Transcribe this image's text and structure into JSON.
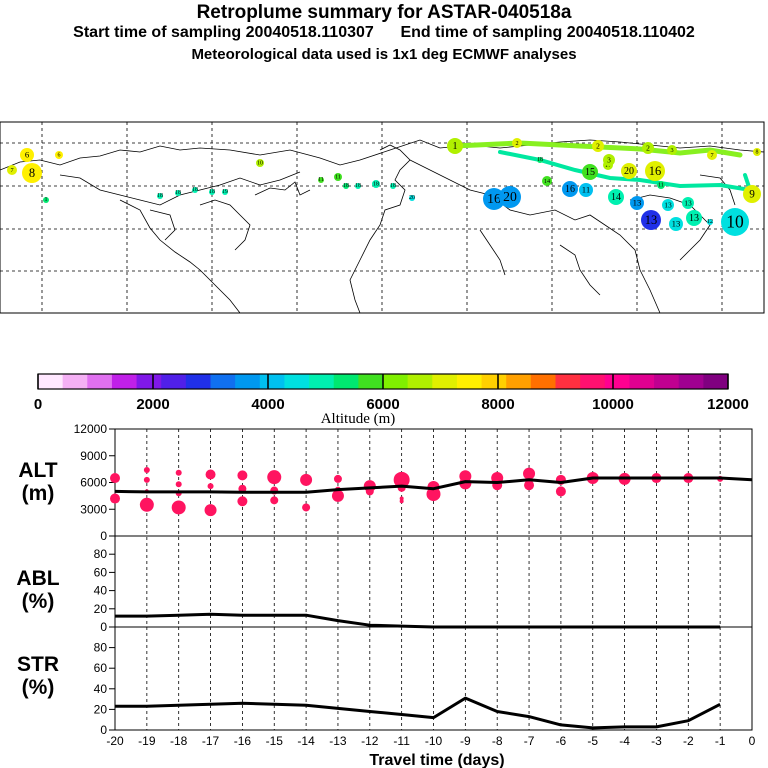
{
  "header": {
    "title": "Retroplume summary for ASTAR-040518a",
    "start_label": "Start time of sampling 20040518.110307",
    "end_label": "End time of sampling 20040518.110402",
    "met_label": "Meteorological data used is 1x1 deg ECMWF analyses"
  },
  "map": {
    "labels": [
      "1",
      "2",
      "3",
      "4",
      "5",
      "6",
      "7",
      "8",
      "9",
      "10",
      "11",
      "12",
      "13",
      "14",
      "15",
      "16",
      "17",
      "18",
      "19",
      "20"
    ],
    "path_color": "#00e8a0",
    "path_color2": "#88f020"
  },
  "colorbar": {
    "ticks": [
      "0",
      "2000",
      "4000",
      "6000",
      "8000",
      "10000",
      "12000"
    ],
    "title": "Altitude (m)",
    "colors": [
      "#ffe8ff",
      "#f4b0f4",
      "#e070f0",
      "#c020e8",
      "#8018e8",
      "#5020e8",
      "#2030e8",
      "#1070f0",
      "#0098f0",
      "#00c0f0",
      "#00e0e0",
      "#00f0b0",
      "#00e870",
      "#40e020",
      "#80f000",
      "#b0f000",
      "#e0f000",
      "#fff000",
      "#ffd000",
      "#ffa000",
      "#ff7000",
      "#ff3040",
      "#ff1070",
      "#ff0090",
      "#e00090",
      "#c00090",
      "#a00090",
      "#800080"
    ]
  },
  "panels": {
    "alt_label_1": "ALT",
    "alt_label_2": "(m)",
    "abl_label_1": "ABL",
    "abl_label_2": "(%)",
    "str_label_1": "STR",
    "str_label_2": "(%)",
    "alt_yticks": [
      "0",
      "3000",
      "6000",
      "9000",
      "12000"
    ],
    "pct_yticks": [
      "0",
      "20",
      "40",
      "60",
      "80"
    ],
    "xticks": [
      "-20",
      "-19",
      "-18",
      "-17",
      "-16",
      "-15",
      "-14",
      "-13",
      "-12",
      "-11",
      "-10",
      "-9",
      "-8",
      "-7",
      "-6",
      "-5",
      "-4",
      "-3",
      "-2",
      "-1",
      "0"
    ],
    "xlabel": "Travel time (days)",
    "marker_color": "#ff1460"
  },
  "chart_data": [
    {
      "type": "line",
      "name": "ALT",
      "ylabel": "ALT (m)",
      "ylim": [
        0,
        12000
      ],
      "x": [
        -20,
        -19,
        -18,
        -17,
        -16,
        -15,
        -14,
        -13,
        -12,
        -11,
        -10,
        -9,
        -8,
        -7,
        -6,
        -5,
        -4,
        -3,
        -2,
        -1,
        0
      ],
      "values": [
        5000,
        4950,
        4950,
        4950,
        4900,
        4900,
        4900,
        5200,
        5400,
        5600,
        5300,
        6100,
        6000,
        6300,
        6000,
        6500,
        6500,
        6500,
        6500,
        6500,
        6300
      ],
      "scatter_points": [
        {
          "x": -20,
          "y": 6500,
          "s": 5
        },
        {
          "x": -20,
          "y": 4200,
          "s": 5
        },
        {
          "x": -19,
          "y": 7400,
          "s": 3
        },
        {
          "x": -19,
          "y": 6300,
          "s": 3
        },
        {
          "x": -19,
          "y": 5000,
          "s": 2
        },
        {
          "x": -19,
          "y": 3500,
          "s": 7
        },
        {
          "x": -18,
          "y": 7100,
          "s": 3
        },
        {
          "x": -18,
          "y": 5800,
          "s": 3
        },
        {
          "x": -18,
          "y": 4800,
          "s": 3
        },
        {
          "x": -18,
          "y": 3200,
          "s": 7
        },
        {
          "x": -17,
          "y": 6900,
          "s": 5
        },
        {
          "x": -17,
          "y": 5600,
          "s": 3
        },
        {
          "x": -17,
          "y": 2900,
          "s": 6
        },
        {
          "x": -16,
          "y": 6800,
          "s": 5
        },
        {
          "x": -16,
          "y": 5300,
          "s": 4
        },
        {
          "x": -16,
          "y": 3900,
          "s": 5
        },
        {
          "x": -15,
          "y": 6600,
          "s": 7
        },
        {
          "x": -15,
          "y": 5100,
          "s": 4
        },
        {
          "x": -15,
          "y": 4000,
          "s": 4
        },
        {
          "x": -14,
          "y": 6300,
          "s": 6
        },
        {
          "x": -14,
          "y": 3200,
          "s": 4
        },
        {
          "x": -13,
          "y": 6400,
          "s": 4
        },
        {
          "x": -13,
          "y": 5200,
          "s": 3
        },
        {
          "x": -13,
          "y": 4500,
          "s": 6
        },
        {
          "x": -12,
          "y": 5600,
          "s": 6
        },
        {
          "x": -12,
          "y": 5000,
          "s": 4
        },
        {
          "x": -11,
          "y": 6300,
          "s": 8
        },
        {
          "x": -11,
          "y": 5400,
          "s": 4
        },
        {
          "x": -11,
          "y": 4200,
          "s": 2
        },
        {
          "x": -11,
          "y": 3900,
          "s": 2
        },
        {
          "x": -10,
          "y": 5500,
          "s": 6
        },
        {
          "x": -10,
          "y": 4700,
          "s": 7
        },
        {
          "x": -9,
          "y": 6700,
          "s": 6
        },
        {
          "x": -9,
          "y": 5900,
          "s": 6
        },
        {
          "x": -8,
          "y": 6500,
          "s": 6
        },
        {
          "x": -8,
          "y": 5700,
          "s": 5
        },
        {
          "x": -7,
          "y": 7000,
          "s": 6
        },
        {
          "x": -7,
          "y": 5700,
          "s": 5
        },
        {
          "x": -6,
          "y": 6300,
          "s": 5
        },
        {
          "x": -6,
          "y": 5000,
          "s": 5
        },
        {
          "x": -5,
          "y": 6500,
          "s": 6
        },
        {
          "x": -4,
          "y": 6400,
          "s": 6
        },
        {
          "x": -3,
          "y": 6500,
          "s": 5
        },
        {
          "x": -2,
          "y": 6500,
          "s": 5
        },
        {
          "x": -1,
          "y": 6400,
          "s": 3
        }
      ]
    },
    {
      "type": "line",
      "name": "ABL",
      "ylabel": "ABL (%)",
      "ylim": [
        0,
        100
      ],
      "x": [
        -20,
        -19,
        -18,
        -17,
        -16,
        -15,
        -14,
        -13,
        -12,
        -11,
        -10,
        -9,
        -8,
        -7,
        -6,
        -5,
        -4,
        -3,
        -2,
        -1
      ],
      "values": [
        12,
        12,
        13,
        14,
        13,
        13,
        13,
        7,
        2,
        1,
        0,
        0,
        0,
        0,
        0,
        0,
        0,
        0,
        0,
        0
      ]
    },
    {
      "type": "line",
      "name": "STR",
      "ylabel": "STR (%)",
      "ylim": [
        0,
        100
      ],
      "xlabel": "Travel time (days)",
      "x": [
        -20,
        -19,
        -18,
        -17,
        -16,
        -15,
        -14,
        -13,
        -12,
        -11,
        -10,
        -9,
        -8,
        -7,
        -6,
        -5,
        -4,
        -3,
        -2,
        -1
      ],
      "values": [
        23,
        23,
        24,
        25,
        26,
        25,
        24,
        21,
        18,
        15,
        12,
        31,
        18,
        13,
        5,
        2,
        3,
        3,
        9,
        25
      ]
    }
  ]
}
